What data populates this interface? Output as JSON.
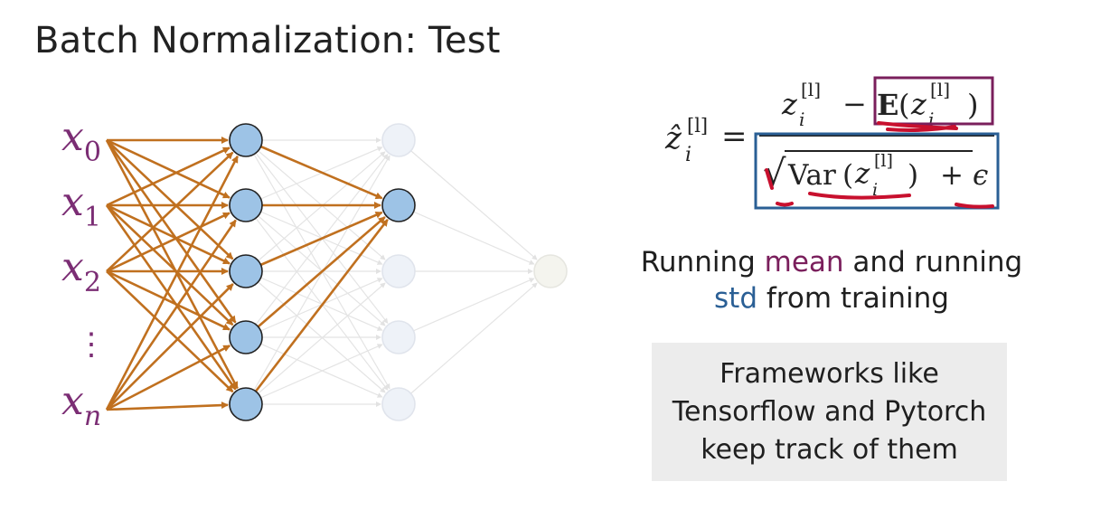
{
  "slide": {
    "title": "Batch Normalization: Test"
  },
  "inputs": {
    "x0": {
      "base": "x",
      "sub": "0"
    },
    "x1": {
      "base": "x",
      "sub": "1"
    },
    "x2": {
      "base": "x",
      "sub": "2"
    },
    "dots": "⋮",
    "xn": {
      "base": "x",
      "sub": "n"
    }
  },
  "network": {
    "layer_sizes": [
      5,
      5,
      5,
      1
    ],
    "input_count": 4,
    "highlighted_layer2_node": 2
  },
  "formula": {
    "lhs_base": "ẑ",
    "lhs_sub": "i",
    "lhs_sup": "[l]",
    "equals": "=",
    "num_z": "z",
    "num_sub": "i",
    "num_sup": "[l]",
    "minus": "−",
    "expect": "E",
    "open": "(",
    "close": ")",
    "sqrt": "√",
    "var": "Var",
    "plus": "+",
    "epsilon": "ϵ"
  },
  "description": {
    "line1_pre": "Running ",
    "line1_mean": "mean",
    "line1_post": " and running",
    "line2_std": "std",
    "line2_post": " from training"
  },
  "callout": {
    "line1": "Frameworks like",
    "line2": "Tensorflow and Pytorch",
    "line3": "keep track of them"
  },
  "colors": {
    "orange": "#c0701f",
    "node_blue": "#9dc3e6",
    "node_faded": "#eef2f8",
    "output_faded": "#f4f4ee",
    "input_purple": "#7b2d74",
    "mean_box": "#7a1f5c",
    "std_box": "#2a5f95",
    "annotation_red": "#c8102e"
  }
}
